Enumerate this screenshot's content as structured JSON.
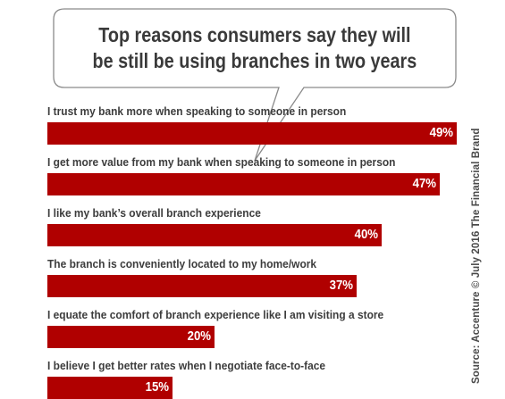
{
  "chart_data": {
    "type": "bar",
    "orientation": "horizontal",
    "title": "Top reasons consumers say they will\nbe still be using branches in two years",
    "categories": [
      "I trust my bank more when speaking to someone in person",
      "I get more value from my bank when speaking to someone in person",
      "I like my bank’s overall branch experience",
      "The branch is conveniently located to my home/work",
      "I equate the comfort of branch experience like I am visiting a store",
      "I believe I get better rates when I negotiate face-to-face"
    ],
    "values": [
      49,
      47,
      40,
      37,
      20,
      15
    ],
    "value_labels": [
      "49%",
      "47%",
      "40%",
      "37%",
      "20%",
      "15%"
    ],
    "xlim": [
      0,
      49
    ],
    "grid": false,
    "legend": "none"
  },
  "source_text": "Source: Accenture © July 2016 The Financial Brand",
  "colors": {
    "bar": "#b00000",
    "value_text": "#ffffff",
    "label_text": "#3d3d3d",
    "title_text": "#3a3a3a",
    "bubble_border": "#8a8a8a"
  }
}
